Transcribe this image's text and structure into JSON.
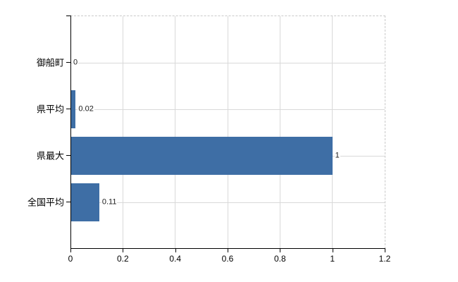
{
  "chart": {
    "background": "#ffffff",
    "bar_color": "#3e6ea5",
    "grid_color": "#d9d9d9",
    "dashed_border_color": "#c9c9c9",
    "axis_color": "#000000",
    "tick_label_color": "#000000",
    "data_label_color": "#1a1a1a"
  },
  "chart_data": {
    "type": "bar",
    "orientation": "horizontal",
    "title": "",
    "xlabel": "",
    "ylabel": "",
    "categories": [
      "御船町",
      "県平均",
      "県最大",
      "全国平均"
    ],
    "values": [
      0,
      0.02,
      1,
      0.11
    ],
    "data_labels": [
      "0",
      "0.02",
      "1",
      "0.11"
    ],
    "xlim": [
      0,
      1.2
    ],
    "x_ticks": [
      0,
      0.2,
      0.4,
      0.6,
      0.8,
      1,
      1.2
    ],
    "x_tick_labels": [
      "0",
      "0.2",
      "0.4",
      "0.6",
      "0.8",
      "1",
      "1.2"
    ],
    "grid": "on",
    "legend": "none"
  }
}
